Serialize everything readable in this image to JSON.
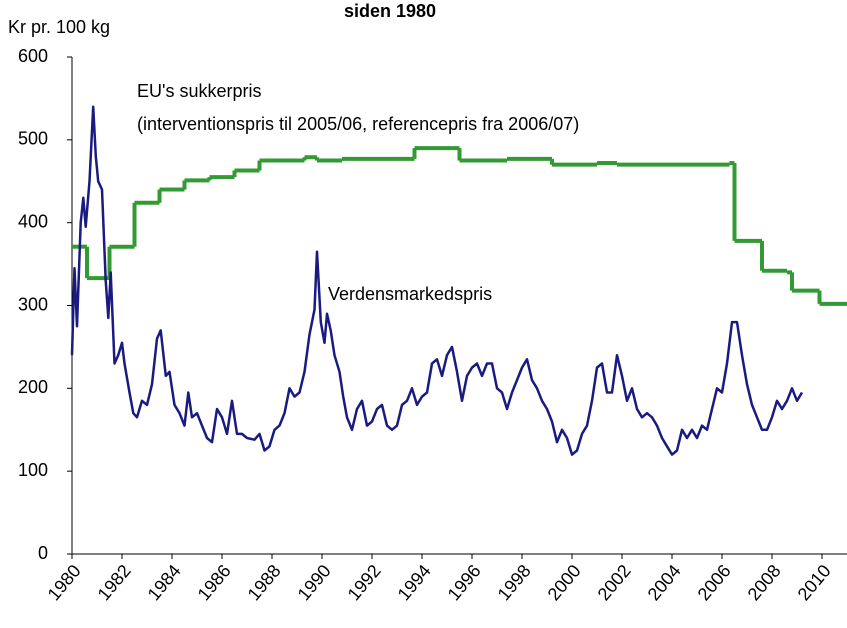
{
  "chart_data": {
    "type": "line",
    "title": "siden 1980",
    "y_label": "Kr pr. 100 kg",
    "xlim": [
      1980,
      2011
    ],
    "xticks": [
      1980,
      1982,
      1984,
      1986,
      1988,
      1990,
      1992,
      1994,
      1996,
      1998,
      2000,
      2002,
      2004,
      2006,
      2008,
      2010
    ],
    "ylim": [
      0,
      600
    ],
    "yticks": [
      0,
      100,
      200,
      300,
      400,
      500,
      600
    ],
    "annotations": [
      "(interventionspris til 2005/06, referencepris fra 2006/07)"
    ],
    "series": [
      {
        "name": "EU's sukkerpris",
        "color": "#339933",
        "step": true,
        "x": [
          1980.0,
          1980.6,
          1981.5,
          1982.5,
          1983.5,
          1984.5,
          1985.5,
          1986.5,
          1987.5,
          1989.3,
          1989.8,
          1990.8,
          1993.7,
          1995.5,
          1997.4,
          1999.2,
          2001.0,
          2001.8,
          2006.3,
          2006.5,
          2007.6,
          2008.6,
          2008.8,
          2009.9
        ],
        "values": [
          371,
          333,
          371,
          424,
          440,
          451,
          455,
          463,
          475,
          479,
          475,
          477,
          490,
          475,
          477,
          470,
          472,
          470,
          472,
          378,
          342,
          340,
          318,
          302
        ]
      },
      {
        "name": "Verdensmarkedspris",
        "color": "#1a1a80",
        "step": false,
        "x": [
          1980.0,
          1980.1,
          1980.2,
          1980.35,
          1980.45,
          1980.55,
          1980.7,
          1980.85,
          1980.95,
          1981.05,
          1981.2,
          1981.35,
          1981.45,
          1981.55,
          1981.7,
          1981.85,
          1982.0,
          1982.1,
          1982.3,
          1982.45,
          1982.6,
          1982.8,
          1983.0,
          1983.2,
          1983.4,
          1983.55,
          1983.75,
          1983.9,
          1984.1,
          1984.3,
          1984.5,
          1984.65,
          1984.8,
          1985.0,
          1985.2,
          1985.4,
          1985.6,
          1985.8,
          1986.0,
          1986.2,
          1986.4,
          1986.6,
          1986.8,
          1987.0,
          1987.3,
          1987.5,
          1987.7,
          1987.9,
          1988.1,
          1988.3,
          1988.5,
          1988.7,
          1988.9,
          1989.1,
          1989.3,
          1989.5,
          1989.7,
          1989.8,
          1989.95,
          1990.1,
          1990.2,
          1990.35,
          1990.5,
          1990.7,
          1990.85,
          1991.0,
          1991.2,
          1991.4,
          1991.6,
          1991.8,
          1992.0,
          1992.2,
          1992.4,
          1992.6,
          1992.8,
          1993.0,
          1993.2,
          1993.4,
          1993.6,
          1993.8,
          1994.0,
          1994.2,
          1994.4,
          1994.6,
          1994.8,
          1995.0,
          1995.2,
          1995.4,
          1995.6,
          1995.8,
          1996.0,
          1996.2,
          1996.4,
          1996.6,
          1996.8,
          1997.0,
          1997.2,
          1997.4,
          1997.6,
          1997.8,
          1998.0,
          1998.2,
          1998.4,
          1998.6,
          1998.8,
          1999.0,
          1999.2,
          1999.4,
          1999.6,
          1999.8,
          2000.0,
          2000.2,
          2000.4,
          2000.6,
          2000.8,
          2001.0,
          2001.2,
          2001.4,
          2001.6,
          2001.8,
          2002.0,
          2002.2,
          2002.4,
          2002.6,
          2002.8,
          2003.0,
          2003.2,
          2003.4,
          2003.6,
          2003.8,
          2004.0,
          2004.2,
          2004.4,
          2004.6,
          2004.8,
          2005.0,
          2005.2,
          2005.4,
          2005.6,
          2005.8,
          2006.0,
          2006.2,
          2006.4,
          2006.6,
          2006.8,
          2007.0,
          2007.2,
          2007.4,
          2007.6,
          2007.8,
          2008.0,
          2008.2,
          2008.4,
          2008.6,
          2008.8,
          2009.0,
          2009.2
        ],
        "values": [
          240,
          345,
          275,
          400,
          430,
          395,
          450,
          540,
          480,
          450,
          440,
          330,
          285,
          340,
          230,
          240,
          255,
          230,
          195,
          170,
          165,
          185,
          180,
          205,
          260,
          270,
          215,
          220,
          180,
          170,
          155,
          195,
          165,
          170,
          155,
          140,
          135,
          175,
          165,
          145,
          185,
          145,
          145,
          140,
          138,
          145,
          125,
          130,
          150,
          155,
          170,
          200,
          190,
          195,
          220,
          265,
          295,
          365,
          280,
          255,
          290,
          270,
          240,
          220,
          190,
          165,
          150,
          175,
          185,
          155,
          160,
          175,
          180,
          155,
          150,
          155,
          180,
          185,
          200,
          180,
          190,
          195,
          230,
          235,
          215,
          240,
          250,
          220,
          185,
          215,
          225,
          230,
          215,
          230,
          230,
          200,
          195,
          175,
          195,
          210,
          225,
          235,
          210,
          200,
          185,
          175,
          160,
          135,
          150,
          140,
          120,
          125,
          145,
          155,
          185,
          225,
          230,
          195,
          195,
          240,
          215,
          185,
          200,
          175,
          165,
          170,
          165,
          155,
          140,
          130,
          120,
          125,
          150,
          140,
          150,
          140,
          155,
          150,
          175,
          200,
          195,
          230,
          280,
          280,
          240,
          205,
          180,
          165,
          150,
          150,
          165,
          185,
          175,
          185,
          200,
          185,
          195
        ]
      }
    ]
  }
}
